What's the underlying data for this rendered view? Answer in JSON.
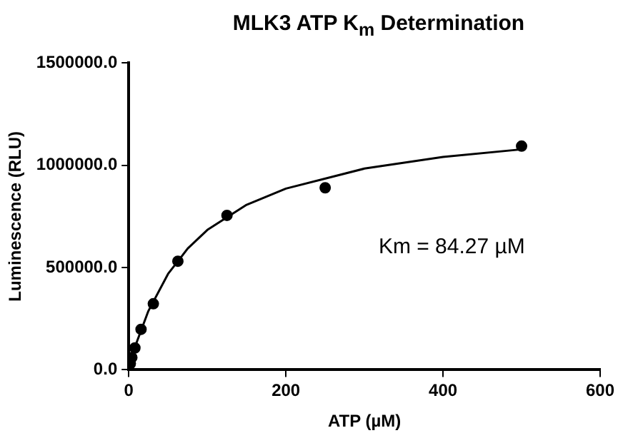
{
  "chart_data": {
    "type": "scatter",
    "title": "MLK3 ATP K$_{m}$ Determination",
    "xlabel": "ATP (µM)",
    "ylabel": "Luminescence (RLU)",
    "annotations": [
      "Km = 84.27 µM"
    ],
    "xlim": [
      0,
      600
    ],
    "xticks": [
      0,
      200,
      400,
      600
    ],
    "ylim": [
      0,
      1500000
    ],
    "yticks": [
      {
        "value": 0,
        "label": "0.0"
      },
      {
        "value": 500000,
        "label": "500000.0"
      },
      {
        "value": 1000000,
        "label": "1000000.0"
      },
      {
        "value": 1500000,
        "label": "1500000.0"
      }
    ],
    "grid": false,
    "legend": false,
    "marker": "circle",
    "series": [
      {
        "color": "#000000",
        "x": [
          1.95,
          3.9,
          7.8,
          15.6,
          31.25,
          62.5,
          125,
          250,
          500
        ],
        "values": [
          30000,
          60000,
          107000,
          198000,
          323000,
          531000,
          755000,
          890000,
          1094000
        ]
      },
      {
        "type": "line",
        "color": "#000000",
        "marker": "none",
        "line_style": "solid",
        "x": [
          0,
          10,
          25,
          50,
          75,
          100,
          150,
          200,
          300,
          400,
          500
        ],
        "values": [
          0,
          134000,
          288000,
          469000,
          593000,
          684000,
          807000,
          886000,
          984000,
          1041000,
          1078000
        ]
      }
    ]
  }
}
